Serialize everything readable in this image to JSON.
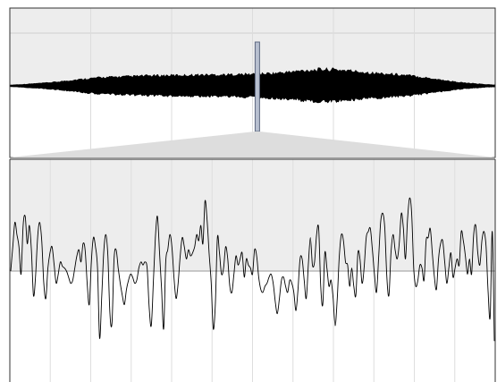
{
  "overview": {
    "background_upper": "#ededed",
    "background_lower": "#ffffff",
    "waveform_color": "#000000",
    "grid_color": "#dcdcdc",
    "grid_count": 5,
    "envelope": [
      1.4,
      2.0,
      2.8,
      3.6,
      4.4,
      5.6,
      7.0,
      8.4,
      9.6,
      10.6,
      11.2,
      11.6,
      12.0,
      12.6,
      13.0,
      13.2,
      13.4,
      13.6,
      13.8,
      14.0,
      14.2,
      14.2,
      14.4,
      14.6,
      14.8,
      15.2,
      15.8,
      16.4,
      17.4,
      18.6,
      19.8,
      20.6,
      21.0,
      20.6,
      19.6,
      18.4,
      17.2,
      16.2,
      15.4,
      14.6,
      13.6,
      12.2,
      10.6,
      8.8,
      7.0,
      5.4,
      4.0,
      3.0,
      2.2,
      1.6
    ],
    "playhead": {
      "fraction": 0.51,
      "fill": "#b7bfcf",
      "stroke": "#5d6880"
    }
  },
  "zoom_connector": {
    "fill": "#dddddd"
  },
  "detail": {
    "background_upper": "#ededed",
    "background_lower": "#ffffff",
    "line_color": "#000000",
    "baseline_color": "#999999",
    "grid_color": "#dedede",
    "grid_count": 11,
    "samples": [
      0.0,
      0.4,
      0.8,
      0.6,
      0.4,
      -0.05,
      0.75,
      0.9,
      0.45,
      0.75,
      0.35,
      -0.4,
      -0.1,
      0.55,
      0.8,
      0.5,
      -0.2,
      -0.45,
      0.05,
      0.3,
      0.4,
      0.1,
      -0.2,
      -0.05,
      0.15,
      0.08,
      0.05,
      0.0,
      -0.1,
      -0.2,
      -0.15,
      0.05,
      0.25,
      0.35,
      0.15,
      0.45,
      0.35,
      -0.2,
      -0.55,
      0.15,
      0.55,
      0.4,
      0.05,
      -1.1,
      -0.45,
      0.3,
      0.6,
      0.25,
      -0.7,
      -0.85,
      0.2,
      0.35,
      0.05,
      -0.2,
      -0.4,
      -0.55,
      -0.3,
      -0.15,
      -0.05,
      -0.1,
      -0.2,
      -0.15,
      0.05,
      0.15,
      0.1,
      0.15,
      0.05,
      -0.6,
      -0.9,
      -0.2,
      0.55,
      0.9,
      0.3,
      -0.3,
      -0.95,
      0.15,
      0.35,
      0.6,
      0.4,
      -0.1,
      -0.45,
      -0.2,
      0.25,
      0.55,
      0.4,
      0.2,
      0.35,
      0.25,
      0.3,
      0.4,
      0.6,
      0.5,
      0.75,
      0.45,
      1.15,
      0.85,
      0.3,
      -0.2,
      -0.95,
      -0.55,
      0.55,
      0.3,
      -0.05,
      0.05,
      0.4,
      0.2,
      -0.25,
      -0.35,
      -0.05,
      0.25,
      0.1,
      0.2,
      0.3,
      -0.1,
      0.2,
      0.1,
      0.05,
      -0.05,
      0.35,
      0.25,
      -0.1,
      -0.3,
      -0.35,
      -0.25,
      -0.2,
      -0.1,
      -0.05,
      -0.2,
      -0.5,
      -0.7,
      -0.45,
      -0.15,
      -0.1,
      -0.25,
      -0.35,
      -0.15,
      -0.2,
      -0.35,
      -0.65,
      -0.3,
      0.2,
      0.2,
      -0.15,
      -0.45,
      0.1,
      0.55,
      0.1,
      0.15,
      0.6,
      0.7,
      -0.25,
      -0.55,
      0.3,
      0.05,
      -0.25,
      -0.15,
      -0.45,
      -0.9,
      -0.45,
      0.25,
      0.6,
      0.5,
      0.15,
      0.1,
      -0.25,
      0.05,
      -0.25,
      -0.4,
      0.3,
      0.2,
      -0.2,
      0.05,
      0.55,
      0.65,
      0.7,
      0.35,
      -0.05,
      -0.35,
      0.2,
      0.8,
      0.95,
      0.7,
      -0.1,
      -0.4,
      0.3,
      0.6,
      0.35,
      0.2,
      0.45,
      0.95,
      0.7,
      0.2,
      0.85,
      1.2,
      0.95,
      0.05,
      -0.25,
      -0.15,
      0.1,
      0.05,
      -0.15,
      0.5,
      0.55,
      0.7,
      0.3,
      -0.1,
      -0.3,
      0.2,
      0.45,
      0.5,
      0.15,
      -0.2,
      0.05,
      0.3,
      -0.1,
      0.05,
      0.2,
      0.1,
      0.65,
      0.5,
      0.25,
      -0.05,
      0.2,
      -0.05,
      0.6,
      0.75,
      0.3,
      0.1,
      0.5,
      0.65,
      0.4,
      -0.35,
      -0.75,
      0.65,
      -1.15
    ]
  }
}
